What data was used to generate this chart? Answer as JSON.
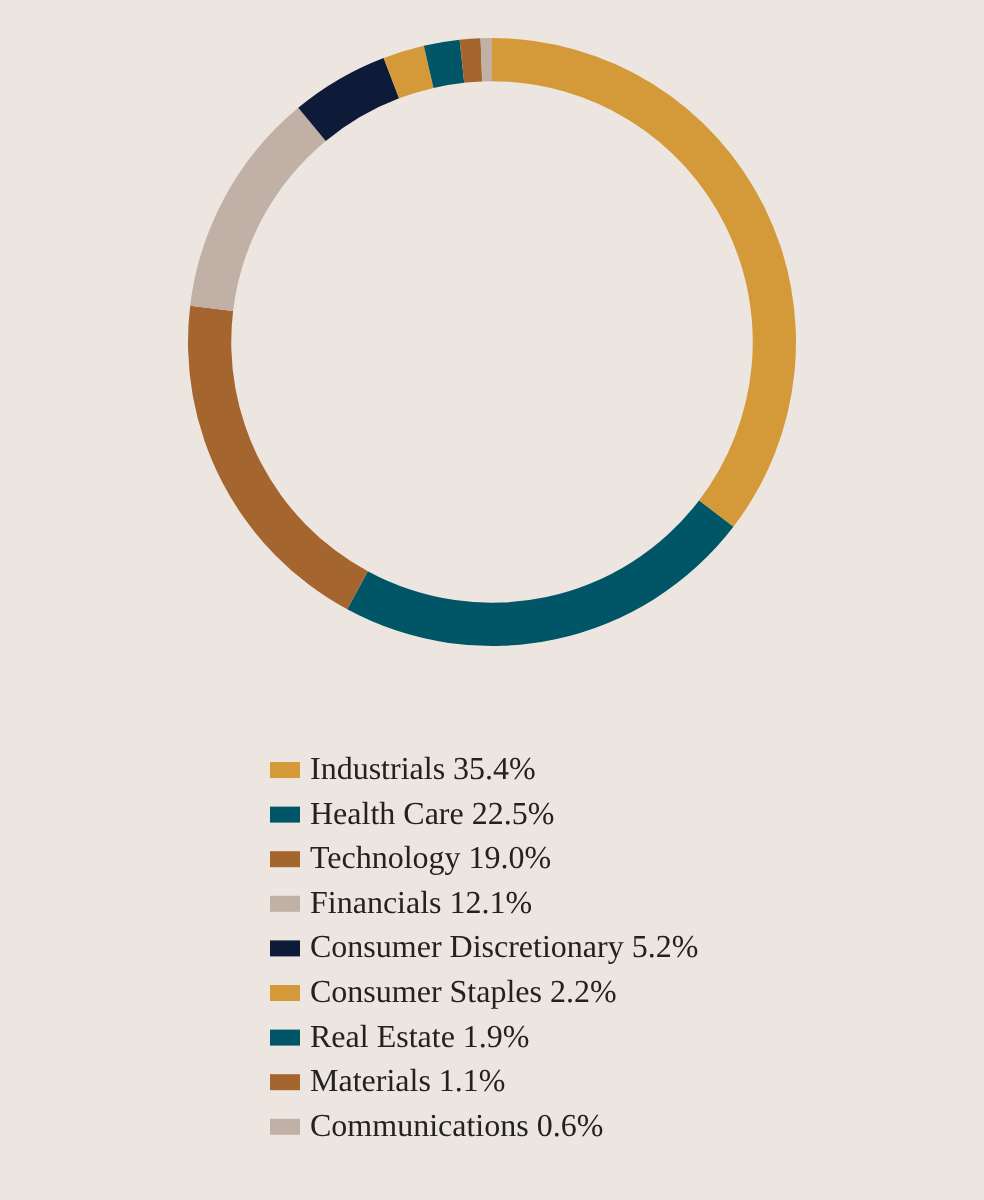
{
  "chart_data": {
    "type": "donut",
    "categories": [
      "Industrials",
      "Health Care",
      "Technology",
      "Financials",
      "Consumer Discretionary",
      "Consumer Staples",
      "Real Estate",
      "Materials",
      "Communications"
    ],
    "values": [
      35.4,
      22.5,
      19.0,
      12.1,
      5.2,
      2.2,
      1.9,
      1.1,
      0.6
    ],
    "value_labels": [
      "35.4%",
      "22.5%",
      "19.0%",
      "12.1%",
      "5.2%",
      "2.2%",
      "1.9%",
      "1.1%",
      "0.6%"
    ],
    "colors": [
      "#d49a3a",
      "#005566",
      "#a5652f",
      "#c0b0a5",
      "#0d1a38",
      "#d49a3a",
      "#005566",
      "#a5652f",
      "#c0b0a5"
    ],
    "legend": "bottom"
  }
}
